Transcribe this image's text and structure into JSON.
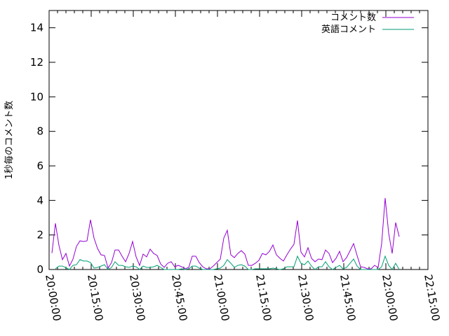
{
  "chart_data": {
    "type": "line",
    "title": "",
    "xlabel": "",
    "ylabel": "1秒毎のコメント数",
    "xlim": [
      "20:00:00",
      "22:15:00"
    ],
    "ylim": [
      0,
      15
    ],
    "x_ticks": [
      "20:00:00",
      "20:15:00",
      "20:30:00",
      "20:45:00",
      "21:00:00",
      "21:15:00",
      "21:30:00",
      "21:45:00",
      "22:00:00",
      "22:15:00"
    ],
    "y_ticks": [
      "0",
      "2",
      "4",
      "6",
      "8",
      "10",
      "12",
      "14"
    ],
    "grid": false,
    "legend_position": "top-right",
    "x": [
      "20:01:00",
      "20:02:15",
      "20:03:30",
      "20:04:45",
      "20:06:00",
      "20:07:15",
      "20:08:30",
      "20:09:45",
      "20:11:00",
      "20:12:15",
      "20:13:30",
      "20:14:45",
      "20:16:00",
      "20:17:15",
      "20:18:30",
      "20:19:45",
      "20:21:00",
      "20:22:15",
      "20:23:30",
      "20:24:45",
      "20:26:00",
      "20:27:15",
      "20:28:30",
      "20:29:45",
      "20:31:00",
      "20:32:15",
      "20:33:30",
      "20:34:45",
      "20:36:00",
      "20:37:15",
      "20:38:30",
      "20:39:45",
      "20:41:00",
      "20:42:15",
      "20:43:30",
      "20:44:45",
      "20:46:00",
      "20:47:15",
      "20:48:30",
      "20:49:45",
      "20:51:00",
      "20:52:15",
      "20:53:30",
      "20:54:45",
      "20:56:00",
      "20:57:15",
      "20:58:30",
      "20:59:45",
      "21:01:00",
      "21:02:15",
      "21:03:30",
      "21:04:45",
      "21:06:00",
      "21:07:15",
      "21:08:30",
      "21:09:45",
      "21:11:00",
      "21:12:15",
      "21:13:30",
      "21:14:45",
      "21:16:00",
      "21:17:15",
      "21:18:30",
      "21:19:45",
      "21:21:00",
      "21:22:15",
      "21:23:30",
      "21:24:45",
      "21:26:00",
      "21:27:15",
      "21:28:30",
      "21:29:45",
      "21:31:00",
      "21:32:15",
      "21:33:30",
      "21:34:45",
      "21:36:00",
      "21:37:15",
      "21:38:30",
      "21:39:45",
      "21:41:00",
      "21:42:15",
      "21:43:30",
      "21:44:45",
      "21:46:00",
      "21:47:15",
      "21:48:30",
      "21:49:45",
      "21:51:00",
      "21:52:15",
      "21:53:30",
      "21:54:45",
      "21:56:00",
      "21:57:15",
      "21:58:30",
      "21:59:45",
      "22:01:00",
      "22:02:15",
      "22:03:30",
      "22:04:45"
    ],
    "series": [
      {
        "name": "コメント数",
        "color": "#9400d3",
        "values": [
          0.95,
          2.67,
          1.4,
          0.57,
          0.93,
          0.2,
          0.6,
          1.34,
          1.66,
          1.62,
          1.66,
          2.88,
          1.82,
          1.22,
          0.85,
          0.81,
          0.08,
          0.4,
          1.13,
          1.13,
          0.77,
          0.45,
          0.93,
          1.62,
          0.73,
          0.24,
          0.89,
          0.73,
          1.18,
          0.93,
          0.81,
          0.32,
          0.12,
          0.36,
          0.45,
          0.16,
          0.24,
          0.16,
          0.04,
          0.12,
          0.77,
          0.77,
          0.4,
          0.16,
          0.04,
          0.04,
          0.2,
          0.4,
          0.6,
          1.82,
          2.27,
          0.85,
          0.69,
          0.93,
          1.09,
          0.89,
          0.24,
          0.24,
          0.36,
          0.53,
          0.93,
          0.85,
          1.05,
          1.42,
          0.85,
          0.65,
          0.49,
          0.85,
          1.18,
          1.46,
          2.84,
          1.01,
          0.73,
          1.26,
          0.65,
          0.45,
          0.61,
          0.57,
          1.13,
          0.93,
          0.4,
          0.65,
          1.05,
          0.45,
          0.69,
          1.09,
          1.5,
          0.81,
          0.16,
          0.12,
          0.04,
          0.04,
          0.24,
          0.12,
          1.5,
          4.14,
          2.1,
          0.93,
          2.72,
          1.9
        ]
      },
      {
        "name": "英語コメント",
        "color": "#009e73",
        "values": [
          null,
          0.04,
          0.2,
          0.2,
          0.1,
          0,
          0.24,
          0.28,
          0.57,
          0.49,
          0.49,
          0.4,
          0.08,
          0.12,
          0.2,
          0.28,
          0,
          0.12,
          0.45,
          0.24,
          0.24,
          0.16,
          0.12,
          0.2,
          0.16,
          0,
          0.2,
          0.12,
          0.12,
          0.16,
          0.24,
          0.12,
          0,
          0,
          0,
          0,
          0,
          0.04,
          0,
          0.04,
          0.2,
          0.2,
          0.08,
          0,
          0,
          0,
          0,
          0.04,
          0.08,
          0.24,
          0.57,
          0.36,
          0.12,
          0.24,
          0.28,
          0.2,
          0,
          0,
          0.04,
          0.04,
          0.04,
          0.04,
          0.04,
          0.08,
          0.04,
          0,
          0.04,
          0.16,
          0.16,
          0.16,
          0.77,
          0.36,
          0.28,
          0.49,
          0.2,
          0,
          0.16,
          0.16,
          0.45,
          0.16,
          0,
          0.12,
          0.24,
          0.04,
          0.12,
          0.36,
          0.61,
          0.2,
          0,
          0,
          0,
          0,
          0,
          0,
          0.16,
          0.77,
          0.24,
          0,
          0.36,
          0
        ]
      }
    ]
  }
}
